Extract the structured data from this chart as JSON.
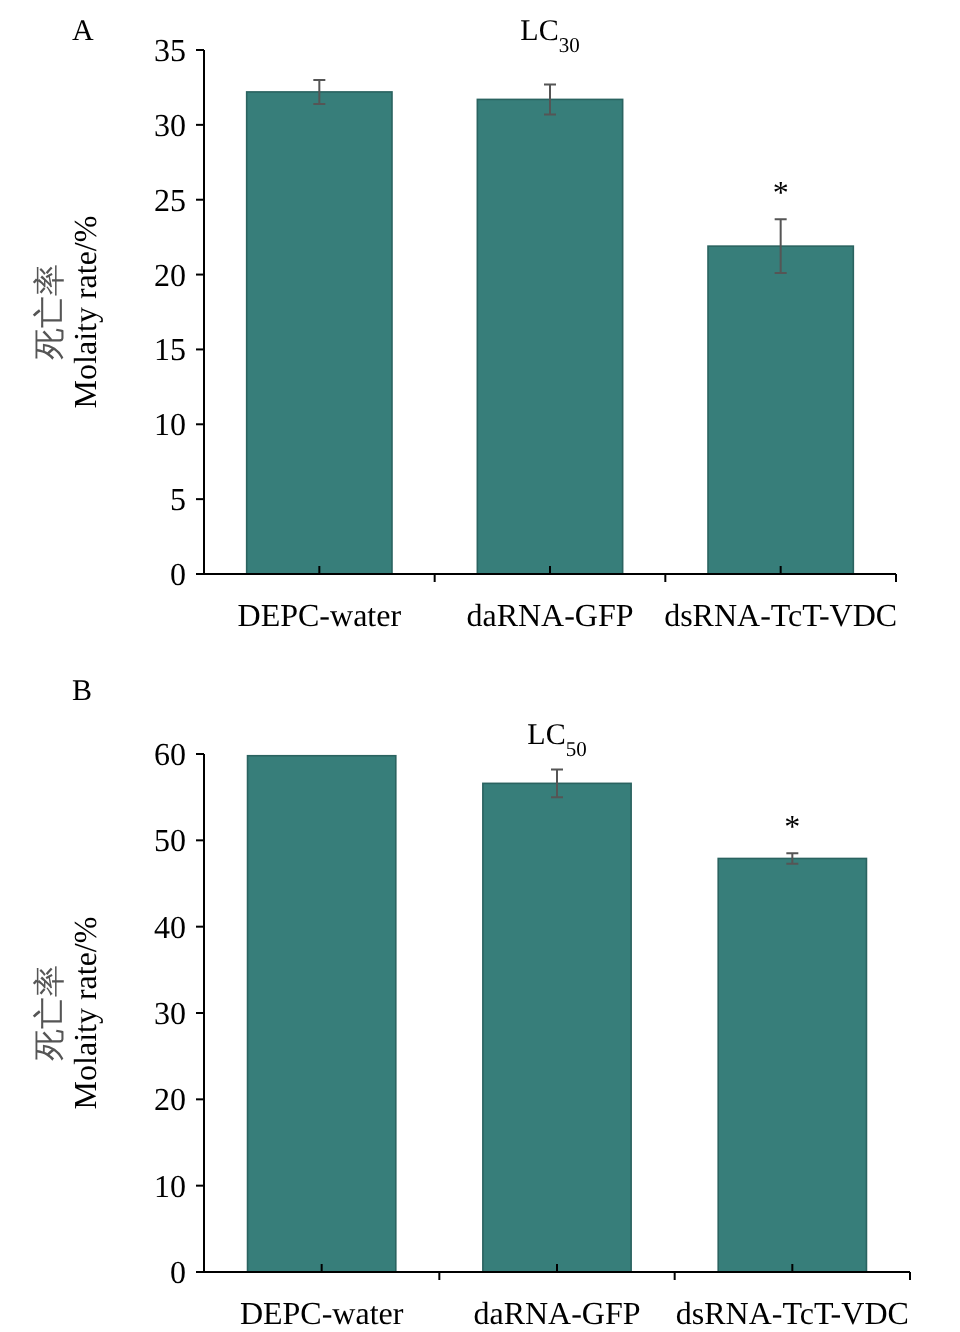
{
  "chart_data": [
    {
      "type": "bar",
      "title": "LC$_{30}$",
      "ylabel": "死亡率\nMolaity rate/%",
      "categories": [
        "DEPC-water",
        "daRNA-GFP",
        "dsRNA-TcT-VDC"
      ],
      "values": [
        32.2,
        31.7,
        21.9
      ],
      "errors": [
        0.8,
        1.0,
        1.8
      ],
      "color": "#377e7a",
      "ylim": [
        0,
        35
      ],
      "yticks": [
        0,
        5,
        10,
        15,
        20,
        25,
        30,
        35
      ],
      "annotations": [
        "A",
        "*"
      ]
    },
    {
      "type": "bar",
      "title": "LC$_{50}$",
      "ylabel": "死亡率\nMolaity rate/%",
      "categories": [
        "DEPC-water",
        "daRNA-GFP",
        "dsRNA-TcT-VDC"
      ],
      "values": [
        59.8,
        56.6,
        47.9
      ],
      "errors": [
        null,
        1.6,
        0.6
      ],
      "color": "#377e7a",
      "ylim": [
        0,
        60
      ],
      "yticks": [
        0,
        10,
        20,
        30,
        40,
        50,
        60
      ],
      "annotations": [
        "B",
        "*"
      ]
    }
  ]
}
